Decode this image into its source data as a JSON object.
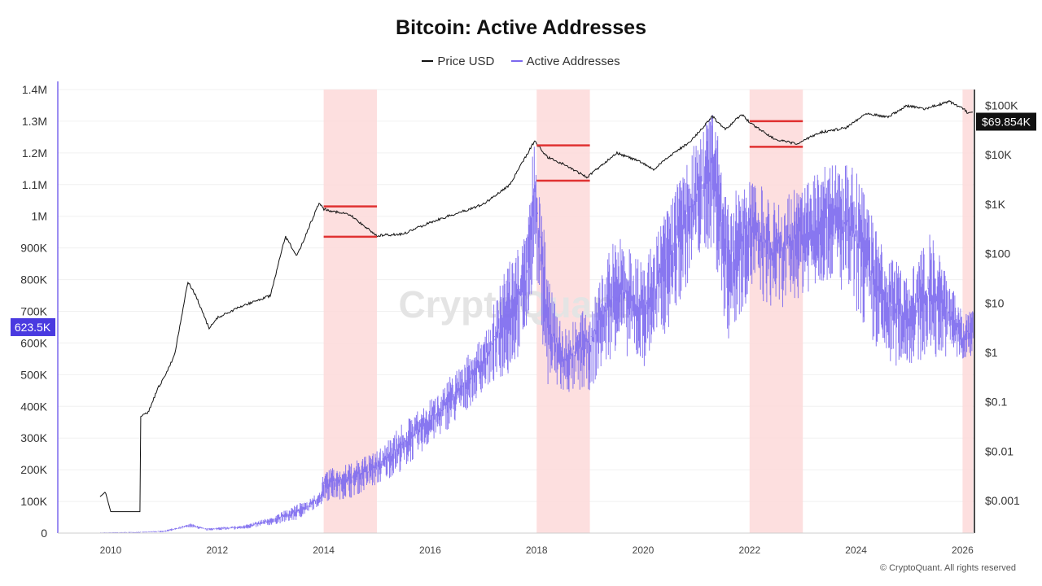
{
  "chart_data": {
    "type": "line",
    "title": "Bitcoin: Active Addresses",
    "legend": {
      "placement": "top-center",
      "entries": [
        "Price USD",
        "Active Addresses"
      ]
    },
    "colors": {
      "price": "#111111",
      "active_addresses": "#7b68ee",
      "shade": "#fdd9d9",
      "level_lines": "#e03131",
      "left_badge": "#4a3ae0",
      "right_badge": "#111111"
    },
    "x_ticks": [
      "2010",
      "2012",
      "2014",
      "2016",
      "2018",
      "2020",
      "2022",
      "2024",
      "2026"
    ],
    "xlim": [
      2009.0,
      2026.2
    ],
    "y_left": {
      "ticks": [
        "0",
        "100K",
        "200K",
        "300K",
        "400K",
        "500K",
        "600K",
        "700K",
        "800K",
        "900K",
        "1M",
        "1.1M",
        "1.2M",
        "1.3M",
        "1.4M"
      ],
      "tick_values": [
        0,
        100000,
        200000,
        300000,
        400000,
        500000,
        600000,
        700000,
        800000,
        900000,
        1000000,
        1100000,
        1200000,
        1300000,
        1400000
      ],
      "ylim": [
        0,
        1400000
      ]
    },
    "y_right": {
      "scale": "log",
      "ticks": [
        "$0.001",
        "$0.01",
        "$0.1",
        "$1",
        "$10",
        "$100",
        "$1K",
        "$10K",
        "$100K"
      ],
      "tick_values": [
        0.001,
        0.01,
        0.1,
        1,
        10,
        100,
        1000,
        10000,
        100000
      ]
    },
    "current_values": {
      "active_addresses": "623.5K",
      "price": "$69.854K"
    },
    "shaded_periods": [
      [
        2014,
        2015
      ],
      [
        2018,
        2019
      ],
      [
        2022,
        2023
      ],
      [
        2026,
        2026.2
      ]
    ],
    "price_levels": [
      {
        "from": 2014,
        "to": 2015,
        "high": 900,
        "low": 220
      },
      {
        "from": 2018,
        "to": 2019,
        "high": 15500,
        "low": 3000
      },
      {
        "from": 2022,
        "to": 2023,
        "high": 48000,
        "low": 14500
      }
    ],
    "series": [
      {
        "name": "Price USD",
        "axis": "right",
        "x": [
          2009.8,
          2009.9,
          2010.0,
          2010.55,
          2010.56,
          2010.7,
          2010.9,
          2011.0,
          2011.2,
          2011.45,
          2011.6,
          2011.85,
          2012.0,
          2012.5,
          2013.0,
          2013.28,
          2013.5,
          2013.92,
          2014.0,
          2014.5,
          2015.0,
          2015.5,
          2016.0,
          2016.5,
          2017.0,
          2017.5,
          2017.96,
          2018.2,
          2018.5,
          2018.95,
          2019.5,
          2019.95,
          2020.2,
          2020.5,
          2020.9,
          2021.3,
          2021.55,
          2021.85,
          2022.0,
          2022.5,
          2022.9,
          2023.3,
          2023.8,
          2024.2,
          2024.6,
          2024.95,
          2025.3,
          2025.75,
          2026.0,
          2026.1,
          2026.2
        ],
        "y": [
          0.0012,
          0.0015,
          0.0006,
          0.0006,
          0.05,
          0.06,
          0.2,
          0.3,
          0.9,
          27,
          14,
          3,
          5,
          9,
          14,
          220,
          90,
          1100,
          800,
          600,
          230,
          250,
          430,
          650,
          1000,
          2500,
          19000,
          9000,
          6500,
          3500,
          11000,
          7200,
          5000,
          9500,
          19000,
          60000,
          32000,
          67000,
          45000,
          20000,
          16500,
          28000,
          35000,
          70000,
          58000,
          98000,
          85000,
          120000,
          88000,
          70000,
          69854
        ]
      },
      {
        "name": "Active Addresses",
        "axis": "left",
        "x": [
          2009.8,
          2010.5,
          2011.0,
          2011.5,
          2011.8,
          2012.5,
          2013.0,
          2013.5,
          2013.95,
          2014.0,
          2014.5,
          2015.0,
          2015.5,
          2016.0,
          2016.5,
          2017.0,
          2017.5,
          2017.8,
          2017.97,
          2018.2,
          2018.5,
          2019.0,
          2019.5,
          2020.0,
          2020.5,
          2021.0,
          2021.3,
          2021.6,
          2022.0,
          2022.5,
          2023.0,
          2023.5,
          2024.0,
          2024.5,
          2025.0,
          2025.4,
          2025.8,
          2026.0,
          2026.2
        ],
        "low": [
          0,
          1000,
          3000,
          18000,
          8000,
          12000,
          25000,
          40000,
          90000,
          100000,
          110000,
          150000,
          200000,
          280000,
          350000,
          450000,
          500000,
          600000,
          850000,
          450000,
          430000,
          450000,
          580000,
          520000,
          650000,
          850000,
          900000,
          600000,
          750000,
          700000,
          750000,
          800000,
          700000,
          520000,
          530000,
          550000,
          560000,
          520000,
          560000
        ],
        "high": [
          2000,
          4000,
          8000,
          30000,
          15000,
          25000,
          50000,
          90000,
          130000,
          200000,
          220000,
          260000,
          350000,
          420000,
          520000,
          620000,
          880000,
          950000,
          1280000,
          850000,
          650000,
          720000,
          950000,
          850000,
          1050000,
          1250000,
          1360000,
          1050000,
          1150000,
          1050000,
          1100000,
          1180000,
          1150000,
          900000,
          820000,
          950000,
          780000,
          700000,
          700000
        ]
      }
    ],
    "watermark": "CryptoQuant",
    "footer": "© CryptoQuant. All rights reserved"
  }
}
